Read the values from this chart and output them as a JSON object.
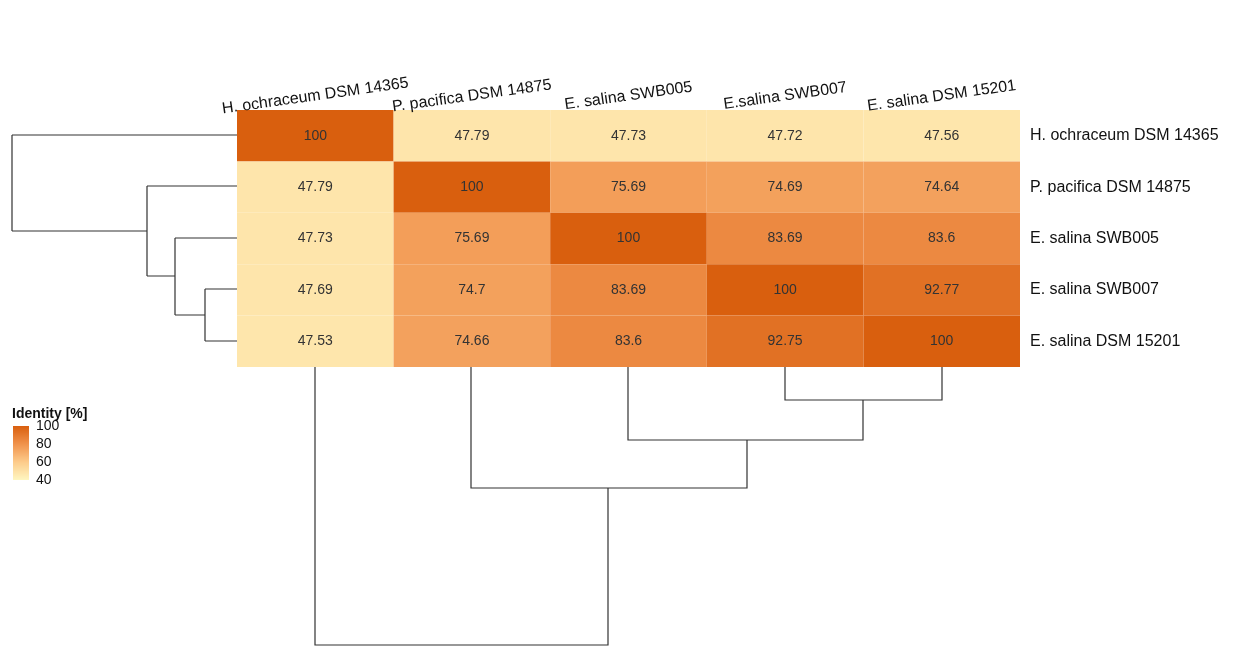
{
  "chart_data": {
    "type": "heatmap",
    "clabel": "Identity [%]",
    "clim": [
      40,
      100
    ],
    "cticks": [
      100,
      80,
      60,
      40
    ],
    "categories": [
      "H. ochraceum DSM 14365",
      "P. pacifica DSM 14875",
      "E. salina SWB005",
      "E.salina SWB007",
      "E. salina DSM 15201"
    ],
    "y_categories": [
      "H. ochraceum DSM 14365",
      "P. pacifica DSM 14875",
      "E. salina SWB005",
      "E. salina SWB007",
      "E. salina DSM 15201"
    ],
    "cells": [
      [
        100,
        47.79,
        47.73,
        47.72,
        47.56
      ],
      [
        47.79,
        100,
        75.69,
        74.69,
        74.64
      ],
      [
        47.73,
        75.69,
        100,
        83.69,
        83.6
      ],
      [
        47.69,
        74.7,
        83.69,
        100,
        92.77
      ],
      [
        47.53,
        74.66,
        83.6,
        92.75,
        100
      ]
    ],
    "data_labels": true
  }
}
